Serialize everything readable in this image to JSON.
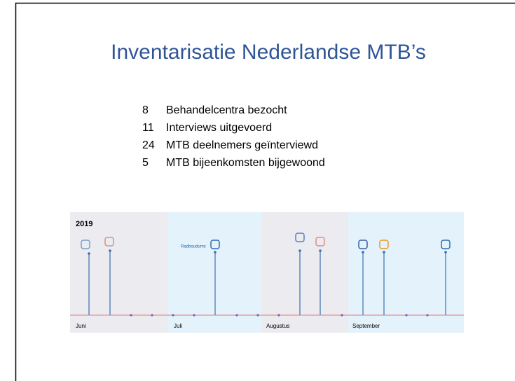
{
  "slide": {
    "title": "Inventarisatie Nederlandse MTB’s",
    "items": [
      {
        "number": "8",
        "text": "Behandelcentra bezocht"
      },
      {
        "number": "11",
        "text": "Interviews uitgevoerd"
      },
      {
        "number": "24",
        "text": "MTB deelnemers geïnterviewd"
      },
      {
        "number": "5",
        "text": "MTB bijeenkomsten bijgewoond"
      }
    ],
    "timeline": {
      "year": "2019",
      "months": [
        "Juni",
        "Juli",
        "Augustus",
        "September"
      ],
      "logo_label": "Radboudumc"
    }
  }
}
